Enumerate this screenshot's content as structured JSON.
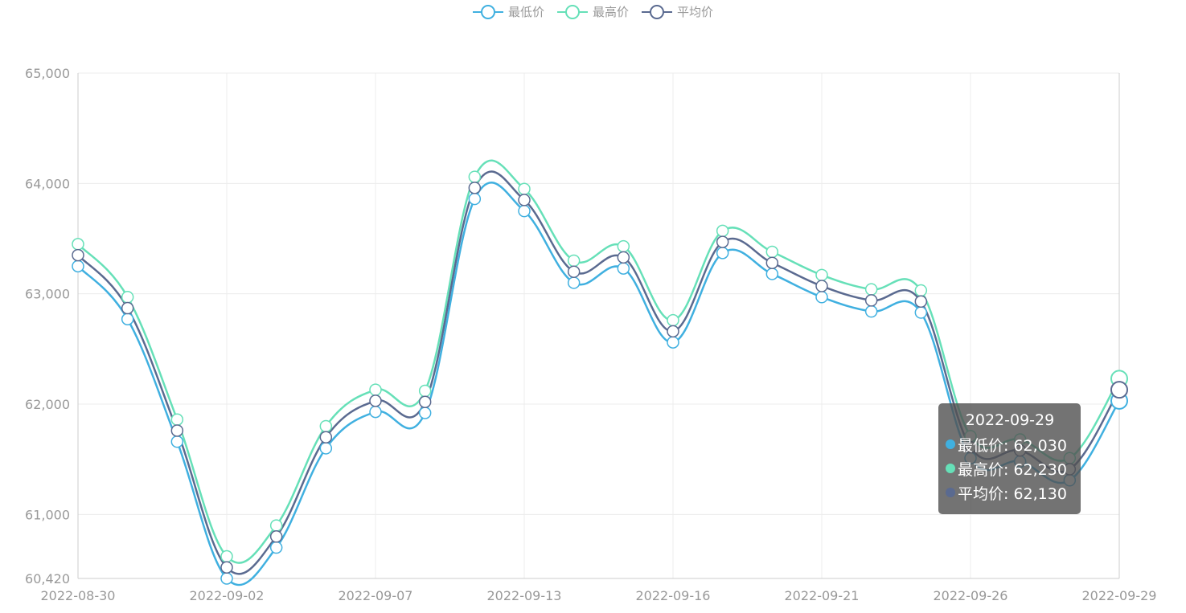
{
  "legend": [
    {
      "name": "最低价",
      "color": "#40b0e0"
    },
    {
      "name": "最高价",
      "color": "#66e0b8"
    },
    {
      "name": "平均价",
      "color": "#5a6a90"
    }
  ],
  "tooltip": {
    "title": "2022-09-29",
    "rows": [
      {
        "text": "最低价: 62,030",
        "color": "#40b0e0"
      },
      {
        "text": "最高价: 62,230",
        "color": "#66e0b8"
      },
      {
        "text": "平均价: 62,130",
        "color": "#5a6a90"
      }
    ]
  },
  "chart_data": {
    "type": "line",
    "x": [
      "2022-08-30",
      "2022-08-31",
      "2022-09-01",
      "2022-09-02",
      "2022-09-05",
      "2022-09-06",
      "2022-09-07",
      "2022-09-08",
      "2022-09-09",
      "2022-09-13",
      "2022-09-14",
      "2022-09-15",
      "2022-09-16",
      "2022-09-19",
      "2022-09-20",
      "2022-09-21",
      "2022-09-22",
      "2022-09-23",
      "2022-09-26",
      "2022-09-27",
      "2022-09-28",
      "2022-09-29"
    ],
    "xticks": [
      "2022-08-30",
      "2022-09-02",
      "2022-09-07",
      "2022-09-13",
      "2022-09-16",
      "2022-09-21",
      "2022-09-26",
      "2022-09-29"
    ],
    "yticks": [
      "65,000",
      "64,000",
      "63,000",
      "62,000",
      "61,000",
      "60,420"
    ],
    "ylim": [
      60420,
      65000
    ],
    "series": [
      {
        "name": "最低价",
        "color": "#40b0e0",
        "values": [
          63250,
          62770,
          61660,
          60420,
          60700,
          61600,
          61930,
          61920,
          63860,
          63750,
          63100,
          63230,
          62560,
          63370,
          63180,
          62970,
          62840,
          62830,
          61510,
          61480,
          61310,
          62030
        ]
      },
      {
        "name": "最高价",
        "color": "#66e0b8",
        "values": [
          63450,
          62970,
          61860,
          60620,
          60900,
          61800,
          62130,
          62120,
          64060,
          63950,
          63300,
          63430,
          62760,
          63570,
          63380,
          63170,
          63040,
          63030,
          61710,
          61680,
          61510,
          62230
        ]
      },
      {
        "name": "平均价",
        "color": "#5a6a90",
        "values": [
          63350,
          62870,
          61760,
          60520,
          60800,
          61700,
          62030,
          62020,
          63960,
          63850,
          63200,
          63330,
          62660,
          63470,
          63280,
          63070,
          62940,
          62930,
          61610,
          61580,
          61410,
          62130
        ]
      }
    ],
    "grid": true,
    "legend_position": "top"
  }
}
